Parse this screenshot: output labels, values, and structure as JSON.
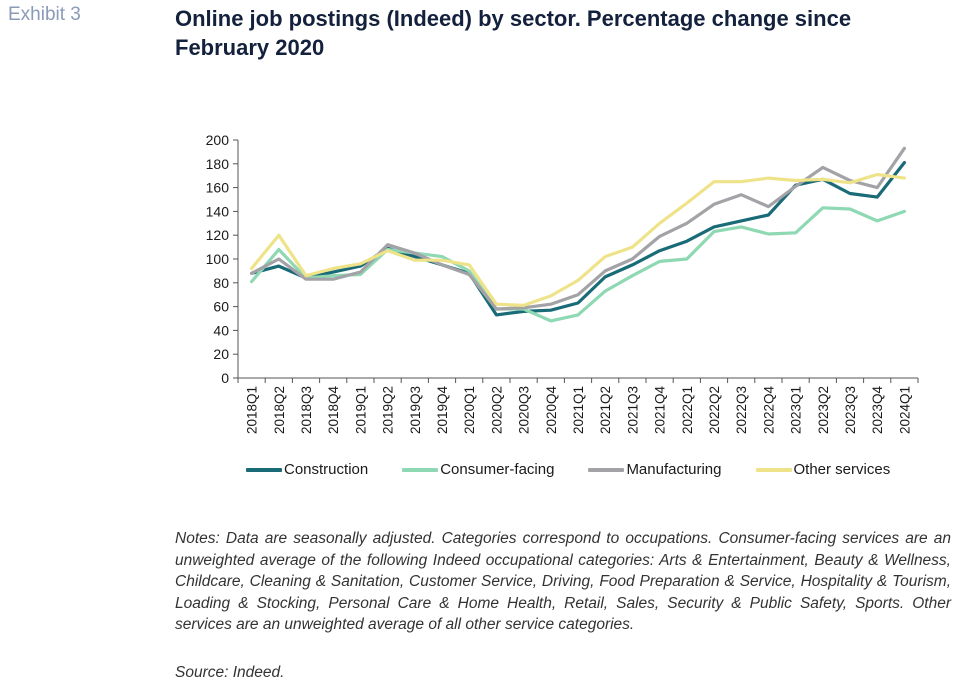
{
  "header": {
    "exhibit_label": "Exhibit 3",
    "title": "Online job postings (Indeed) by sector. Percentage change since February 2020"
  },
  "chart_data": {
    "type": "line",
    "title": "Online job postings (Indeed) by sector. Percentage change since February 2020",
    "xlabel": "",
    "ylabel": "",
    "ylim": [
      0,
      200
    ],
    "yticks": [
      0,
      20,
      40,
      60,
      80,
      100,
      120,
      140,
      160,
      180,
      200
    ],
    "grid": false,
    "legend_position": "bottom",
    "categories": [
      "2018Q1",
      "2018Q2",
      "2018Q3",
      "2018Q4",
      "2019Q1",
      "2019Q2",
      "2019Q3",
      "2019Q4",
      "2020Q1",
      "2020Q2",
      "2020Q3",
      "2020Q4",
      "2021Q1",
      "2021Q2",
      "2021Q3",
      "2021Q4",
      "2022Q1",
      "2022Q2",
      "2022Q3",
      "2022Q4",
      "2023Q1",
      "2023Q2",
      "2023Q3",
      "2023Q4",
      "2024Q1"
    ],
    "series": [
      {
        "name": "Construction",
        "color": "#1a6b78",
        "values": [
          88,
          94,
          84,
          89,
          94,
          109,
          102,
          95,
          88,
          53,
          56,
          57,
          63,
          85,
          95,
          107,
          115,
          127,
          132,
          137,
          162,
          167,
          155,
          152,
          181
        ]
      },
      {
        "name": "Consumer-facing",
        "color": "#8fd8b4",
        "values": [
          81,
          108,
          84,
          86,
          87,
          108,
          105,
          102,
          90,
          58,
          58,
          48,
          53,
          73,
          86,
          98,
          100,
          123,
          127,
          121,
          122,
          143,
          142,
          132,
          140
        ]
      },
      {
        "name": "Manufacturing",
        "color": "#a3a3a7",
        "values": [
          88,
          100,
          83,
          83,
          89,
          112,
          105,
          95,
          87,
          58,
          59,
          62,
          70,
          90,
          100,
          119,
          130,
          146,
          154,
          144,
          161,
          177,
          166,
          160,
          193
        ]
      },
      {
        "name": "Other services",
        "color": "#efe38a",
        "values": [
          92,
          120,
          86,
          92,
          96,
          107,
          99,
          99,
          95,
          62,
          61,
          69,
          82,
          102,
          110,
          130,
          147,
          165,
          165,
          168,
          166,
          167,
          164,
          171,
          168
        ]
      }
    ]
  },
  "notes": "Notes: Data are seasonally adjusted. Categories correspond to occupations. Consumer-facing services are an unweighted average of the following Indeed occupational categories: Arts & Entertainment, Beauty & Wellness, Childcare, Cleaning & Sanitation, Customer Service, Driving, Food Preparation & Service, Hospitality & Tourism, Loading & Stocking, Personal Care & Home Health, Retail, Sales, Security & Public Safety, Sports. Other services are an unweighted average of all other service categories.",
  "source": "Source: Indeed."
}
